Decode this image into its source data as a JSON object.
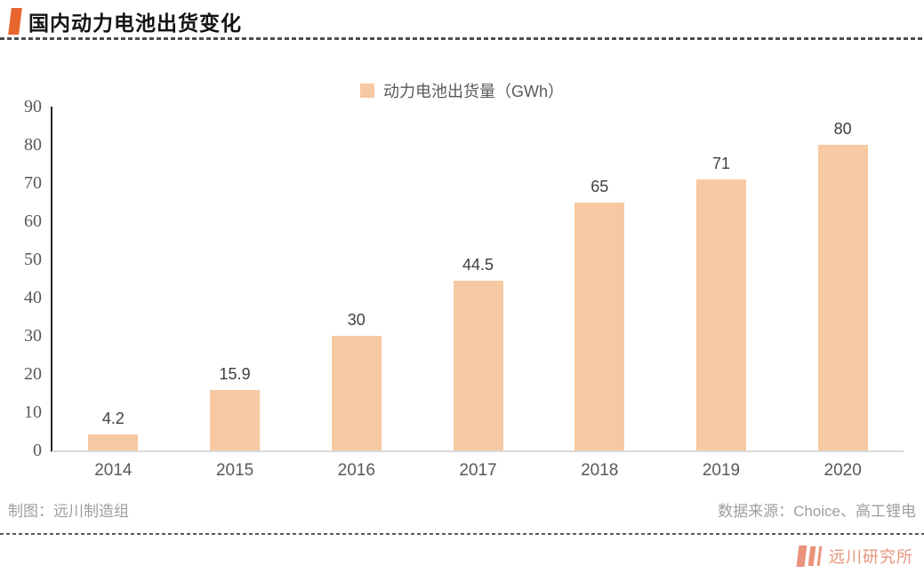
{
  "header": {
    "title": "国内动力电池出货变化"
  },
  "chart_data": {
    "type": "bar",
    "title": "国内动力电池出货变化",
    "legend": "动力电池出货量（GWh）",
    "legend_position": "top-center",
    "categories": [
      "2014",
      "2015",
      "2016",
      "2017",
      "2018",
      "2019",
      "2020"
    ],
    "values": [
      4.2,
      15.9,
      30,
      44.5,
      65,
      71,
      80
    ],
    "xlabel": "",
    "ylabel": "",
    "ylim": [
      0,
      90
    ],
    "yticks": [
      0,
      10,
      20,
      30,
      40,
      50,
      60,
      70,
      80,
      90
    ],
    "grid": false,
    "data_labels": [
      "4.2",
      "15.9",
      "30",
      "44.5",
      "65",
      "71",
      "80"
    ]
  },
  "footer": {
    "credit_left": "制图：远川制造组",
    "credit_right": "数据来源：Choice、高工锂电"
  },
  "brand": {
    "name": "远川研究所"
  },
  "colors": {
    "bar_fill": "#f7c9a3",
    "accent_orange": "#e8662d",
    "brand_salmon": "#e9937b",
    "axis_text": "#595959",
    "data_label_text": "#3f3f3f",
    "muted_text": "#9e9e9e",
    "y_axis_line": "#262626",
    "x_axis_line": "#d9d9d9",
    "dash_line": "#4d4d4d"
  }
}
